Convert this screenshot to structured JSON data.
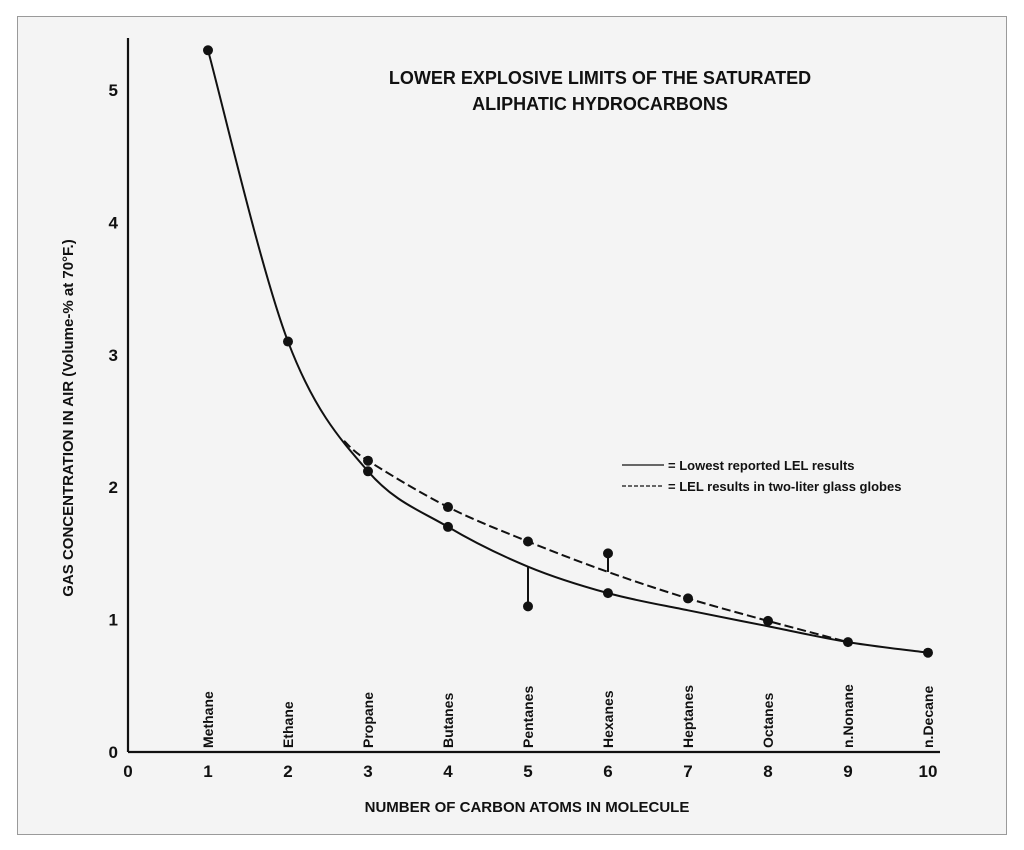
{
  "chart_data": {
    "type": "line",
    "title": "LOWER EXPLOSIVE LIMITS OF THE SATURATED ALIPHATIC HYDROCARBONS",
    "title_lines": [
      "LOWER EXPLOSIVE LIMITS OF THE SATURATED",
      "ALIPHATIC HYDROCARBONS"
    ],
    "xlabel": "NUMBER OF CARBON ATOMS IN MOLECULE",
    "ylabel": "GAS CONCENTRATION IN AIR (Volume-% at 70°F.)",
    "xlim": [
      0,
      10
    ],
    "ylim": [
      0,
      5.4
    ],
    "x_ticks": [
      0,
      1,
      2,
      3,
      4,
      5,
      6,
      7,
      8,
      9,
      10
    ],
    "y_ticks": [
      1,
      2,
      3,
      4,
      5
    ],
    "grid": false,
    "legend_position": "right",
    "categories": [
      "Methane",
      "Ethane",
      "Propane",
      "Butanes",
      "Pentanes",
      "Hexanes",
      "Heptanes",
      "Octanes",
      "n.Nonane",
      "n.Decane"
    ],
    "series": [
      {
        "name": "= Lowest reported LEL results",
        "style": "solid",
        "x": [
          1,
          2,
          3,
          4,
          5,
          6,
          7,
          8,
          9,
          10
        ],
        "y": [
          5.3,
          3.1,
          2.12,
          1.7,
          1.4,
          1.2,
          1.07,
          0.95,
          0.83,
          0.75
        ],
        "points_x": [
          1,
          2,
          3,
          4,
          5,
          6,
          9,
          10
        ],
        "points_y": [
          5.3,
          3.1,
          2.12,
          1.7,
          1.1,
          1.2,
          0.83,
          0.75
        ]
      },
      {
        "name": "= LEL results in two-liter glass globes",
        "style": "dashed",
        "x": [
          2.7,
          3,
          4,
          5,
          6,
          7,
          8,
          9
        ],
        "y": [
          2.35,
          2.2,
          1.85,
          1.59,
          1.36,
          1.16,
          0.99,
          0.83
        ],
        "points_x": [
          3,
          4,
          5,
          6,
          7,
          8
        ],
        "points_y": [
          2.2,
          1.85,
          1.59,
          1.5,
          1.16,
          0.99
        ]
      }
    ],
    "range_bars": [
      {
        "x": 5,
        "y_from": 1.1,
        "y_to": 1.4
      },
      {
        "x": 6,
        "y_from": 1.36,
        "y_to": 1.5
      }
    ]
  }
}
